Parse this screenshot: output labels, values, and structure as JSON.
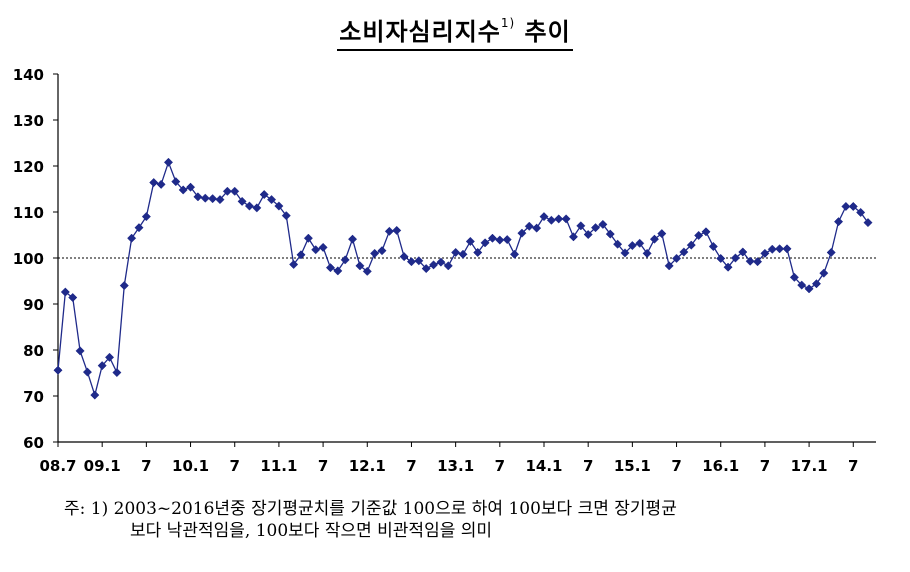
{
  "title": "소비자심리지수",
  "title_sup": "1)",
  "title_suffix": " 추이",
  "footnote": {
    "line1": "주: 1) 2003~2016년중 장기평균치를 기준값 100으로 하여 100보다 크면 장기평균",
    "line2": "보다 낙관적임을, 100보다 작으면 비관적임을 의미"
  },
  "colors": {
    "series": "#1f2a8a",
    "axis": "#000000",
    "reference": "#000000"
  },
  "chart_data": {
    "type": "line",
    "title": "소비자심리지수1) 추이",
    "ylim": [
      60,
      140
    ],
    "yticks": [
      60,
      70,
      80,
      90,
      100,
      110,
      120,
      130,
      140
    ],
    "reference_line": 100,
    "xtick_labels": [
      {
        "label": "08.7",
        "index": 0
      },
      {
        "label": "09.1",
        "index": 6
      },
      {
        "label": "7",
        "index": 12
      },
      {
        "label": "10.1",
        "index": 18
      },
      {
        "label": "7",
        "index": 24
      },
      {
        "label": "11.1",
        "index": 30
      },
      {
        "label": "7",
        "index": 36
      },
      {
        "label": "12.1",
        "index": 42
      },
      {
        "label": "7",
        "index": 48
      },
      {
        "label": "13.1",
        "index": 54
      },
      {
        "label": "7",
        "index": 60
      },
      {
        "label": "14.1",
        "index": 66
      },
      {
        "label": "7",
        "index": 72
      },
      {
        "label": "15.1",
        "index": 78
      },
      {
        "label": "7",
        "index": 84
      },
      {
        "label": "16.1",
        "index": 90
      },
      {
        "label": "7",
        "index": 96
      },
      {
        "label": "17.1",
        "index": 102
      },
      {
        "label": "7",
        "index": 108
      }
    ],
    "x_start": "2008-07",
    "series": [
      {
        "values": [
          75.6,
          92.6,
          91.4,
          79.8,
          75.2,
          70.2,
          76.6,
          78.4,
          75.1,
          94.0,
          104.3,
          106.6,
          109.0,
          116.4,
          116.0,
          120.8,
          116.6,
          114.8,
          115.4,
          113.3,
          113.0,
          112.9,
          112.7,
          114.5,
          114.5,
          112.3,
          111.3,
          110.9,
          113.8,
          112.7,
          111.3,
          109.2,
          98.6,
          100.7,
          104.3,
          101.8,
          102.3,
          97.9,
          97.2,
          99.6,
          104.1,
          98.3,
          97.1,
          101.0,
          101.6,
          105.8,
          106.0,
          100.3,
          99.2,
          99.4,
          97.7,
          98.5,
          99.1,
          98.3,
          101.2,
          100.8,
          103.6,
          101.2,
          103.3,
          104.3,
          103.9,
          104.0,
          100.8,
          105.4,
          106.9,
          106.5,
          109.0,
          108.2,
          108.5,
          108.5,
          104.6,
          107.0,
          105.1,
          106.6,
          107.3,
          105.2,
          103.0,
          101.1,
          102.7,
          103.2,
          101.0,
          104.1,
          105.3,
          98.3,
          99.9,
          101.3,
          102.8,
          104.9,
          105.7,
          102.5,
          99.9,
          98.0,
          100.0,
          101.3,
          99.3,
          99.2,
          101.0,
          101.9,
          102.0,
          102.0,
          95.8,
          94.1,
          93.3,
          94.4,
          96.7,
          101.2,
          107.9,
          111.2,
          111.2,
          109.9,
          107.7
        ]
      }
    ]
  }
}
